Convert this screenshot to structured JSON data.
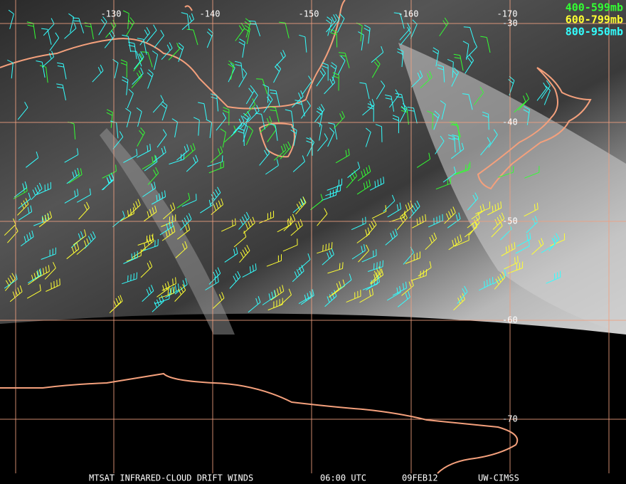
{
  "map": {
    "longitude_labels": [
      "-130",
      "-140",
      "-150",
      "-160",
      "-170"
    ],
    "latitude_labels": [
      "-30",
      "-40",
      "-50",
      "-60",
      "-70"
    ],
    "legend": [
      {
        "label": "400-599mb",
        "color": "#33ff33"
      },
      {
        "label": "600-799mb",
        "color": "#ffff33"
      },
      {
        "label": "800-950mb",
        "color": "#33ffff"
      }
    ],
    "footer": [
      "MTSAT INFRARED-CLOUD DRIFT WINDS",
      "06:00 UTC",
      "09FEB12",
      "UW-CIMSS"
    ]
  }
}
